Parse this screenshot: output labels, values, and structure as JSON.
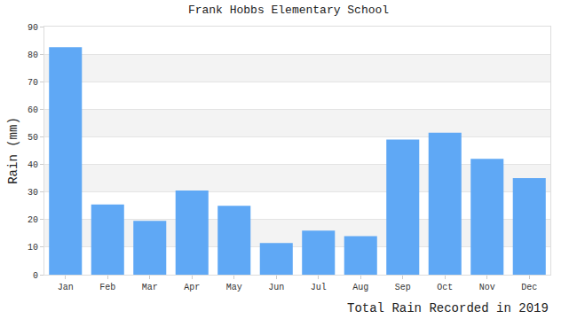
{
  "chart_data": {
    "type": "bar",
    "title": "Frank Hobbs Elementary School",
    "x_label": "Total Rain Recorded in 2019",
    "y_label": "Rain (mm)",
    "categories": [
      "Jan",
      "Feb",
      "Mar",
      "Apr",
      "May",
      "Jun",
      "Jul",
      "Aug",
      "Sep",
      "Oct",
      "Nov",
      "Dec"
    ],
    "values": [
      82.5,
      25.5,
      19.5,
      30.5,
      25,
      11.5,
      16,
      14,
      49,
      51.5,
      42,
      35
    ],
    "color": "#5fa8f5",
    "ylim": [
      0,
      90
    ],
    "yticks": [
      0,
      10,
      20,
      30,
      40,
      50,
      60,
      70,
      80,
      90
    ],
    "grid": true
  }
}
